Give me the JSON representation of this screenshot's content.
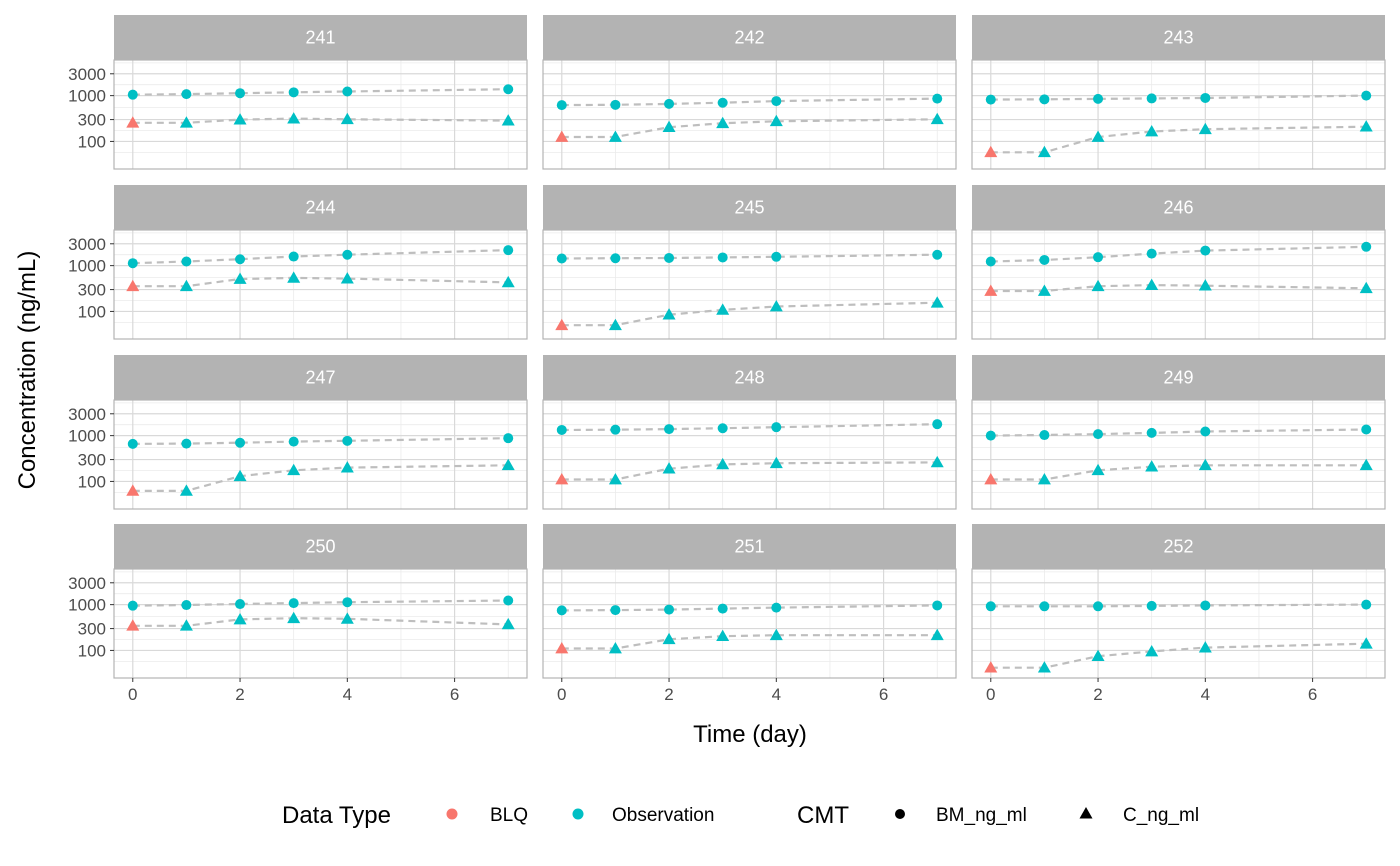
{
  "chart_data": {
    "type": "scatter",
    "facets": [
      "241",
      "242",
      "243",
      "244",
      "245",
      "246",
      "247",
      "248",
      "249",
      "250",
      "251",
      "252"
    ],
    "xlabel": "Time (day)",
    "ylabel": "Concentration (ng/mL)",
    "y_scale": "log10",
    "ylim": [
      25,
      6000
    ],
    "xlim": [
      -0.35,
      7.35
    ],
    "x_ticks": [
      0,
      2,
      4,
      6
    ],
    "x_tick_labels": [
      "0",
      "2",
      "4",
      "6"
    ],
    "y_ticks": [
      100,
      300,
      1000,
      3000
    ],
    "y_tick_labels": [
      "100",
      "300",
      "1000",
      "3000"
    ],
    "grid": true,
    "x": [
      0,
      1,
      2,
      3,
      4,
      7
    ],
    "series": [
      {
        "facet": "241",
        "cmt": "BM_ng_ml",
        "values": [
          1050,
          1080,
          1130,
          1180,
          1230,
          1380
        ]
      },
      {
        "facet": "241",
        "cmt": "C_ng_ml",
        "values": [
          255,
          255,
          300,
          315,
          305,
          285
        ]
      },
      {
        "facet": "242",
        "cmt": "BM_ng_ml",
        "values": [
          620,
          630,
          660,
          700,
          760,
          860
        ]
      },
      {
        "facet": "242",
        "cmt": "C_ng_ml",
        "values": [
          125,
          125,
          205,
          250,
          275,
          305
        ]
      },
      {
        "facet": "243",
        "cmt": "BM_ng_ml",
        "values": [
          820,
          830,
          850,
          870,
          890,
          1000
        ]
      },
      {
        "facet": "243",
        "cmt": "C_ng_ml",
        "values": [
          58,
          58,
          125,
          165,
          185,
          210
        ]
      },
      {
        "facet": "244",
        "cmt": "BM_ng_ml",
        "values": [
          1130,
          1230,
          1380,
          1580,
          1730,
          2180
        ]
      },
      {
        "facet": "244",
        "cmt": "C_ng_ml",
        "values": [
          355,
          355,
          510,
          540,
          520,
          430
        ]
      },
      {
        "facet": "245",
        "cmt": "BM_ng_ml",
        "values": [
          1430,
          1450,
          1470,
          1510,
          1560,
          1730
        ]
      },
      {
        "facet": "245",
        "cmt": "C_ng_ml",
        "values": [
          50,
          50,
          85,
          108,
          128,
          155
        ]
      },
      {
        "facet": "246",
        "cmt": "BM_ng_ml",
        "values": [
          1230,
          1330,
          1530,
          1830,
          2130,
          2580
        ]
      },
      {
        "facet": "246",
        "cmt": "C_ng_ml",
        "values": [
          280,
          280,
          355,
          375,
          365,
          320
        ]
      },
      {
        "facet": "247",
        "cmt": "BM_ng_ml",
        "values": [
          660,
          670,
          700,
          740,
          770,
          880
        ]
      },
      {
        "facet": "247",
        "cmt": "C_ng_ml",
        "values": [
          62,
          62,
          130,
          175,
          200,
          225
        ]
      },
      {
        "facet": "248",
        "cmt": "BM_ng_ml",
        "values": [
          1330,
          1350,
          1390,
          1450,
          1530,
          1780
        ]
      },
      {
        "facet": "248",
        "cmt": "C_ng_ml",
        "values": [
          110,
          110,
          190,
          235,
          250,
          260
        ]
      },
      {
        "facet": "249",
        "cmt": "BM_ng_ml",
        "values": [
          1000,
          1030,
          1080,
          1150,
          1230,
          1360
        ]
      },
      {
        "facet": "249",
        "cmt": "C_ng_ml",
        "values": [
          110,
          110,
          175,
          210,
          225,
          225
        ]
      },
      {
        "facet": "250",
        "cmt": "BM_ng_ml",
        "values": [
          950,
          980,
          1030,
          1080,
          1130,
          1230
        ]
      },
      {
        "facet": "250",
        "cmt": "C_ng_ml",
        "values": [
          345,
          345,
          475,
          505,
          490,
          370
        ]
      },
      {
        "facet": "251",
        "cmt": "BM_ng_ml",
        "values": [
          750,
          760,
          780,
          820,
          860,
          960
        ]
      },
      {
        "facet": "251",
        "cmt": "C_ng_ml",
        "values": [
          110,
          110,
          175,
          205,
          215,
          215
        ]
      },
      {
        "facet": "252",
        "cmt": "BM_ng_ml",
        "values": [
          920,
          920,
          920,
          940,
          960,
          1000
        ]
      },
      {
        "facet": "252",
        "cmt": "C_ng_ml",
        "values": [
          42,
          42,
          75,
          95,
          115,
          140
        ]
      }
    ],
    "blq": {
      "x": 0,
      "cmt": "C_ng_ml"
    },
    "legend": {
      "position": "bottom",
      "data_type": {
        "title": "Data Type",
        "items": [
          {
            "label": "BLQ",
            "color": "#F8766D"
          },
          {
            "label": "Observation",
            "color": "#00BFC4"
          }
        ]
      },
      "cmt": {
        "title": "CMT",
        "items": [
          {
            "label": "BM_ng_ml",
            "shape": "circle"
          },
          {
            "label": "C_ng_ml",
            "shape": "triangle"
          }
        ]
      }
    },
    "colors": {
      "blq": "#F8766D",
      "observation": "#00BFC4",
      "line": "#BEBEBE",
      "strip": "#B3B3B3",
      "grid_major": "#D9D9D9",
      "grid_minor": "#EBEBEB",
      "panel_border": "#B3B3B3"
    }
  }
}
